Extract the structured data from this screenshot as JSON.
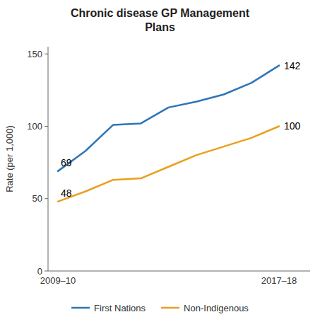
{
  "chart_data": {
    "type": "line",
    "title": "Chronic disease GP Management\nPlans",
    "y_label": "Rate (per 1,000)",
    "categories": [
      "2009–10",
      null,
      null,
      null,
      null,
      null,
      null,
      null,
      "2017–18"
    ],
    "series": [
      {
        "name": "First Nations",
        "color": "#2e75b6",
        "values": [
          69,
          83,
          101,
          102,
          113,
          117,
          122,
          130,
          142
        ]
      },
      {
        "name": "Non-Indigenous",
        "color": "#e8a020",
        "values": [
          48,
          55,
          63,
          64,
          72,
          80,
          86,
          92,
          100
        ]
      }
    ],
    "annotations": [
      {
        "text": "69",
        "x": "2009–10",
        "y": 69
      },
      {
        "text": "48",
        "x": "2009–10",
        "y": 48
      },
      {
        "text": "142",
        "x": "2017–18",
        "y": 142
      },
      {
        "text": "100",
        "x": "2017–18",
        "y": 100
      }
    ],
    "ylim": [
      0,
      155
    ],
    "yticks": [
      0,
      50,
      100,
      150
    ],
    "grid": false,
    "legend": "bottom"
  }
}
